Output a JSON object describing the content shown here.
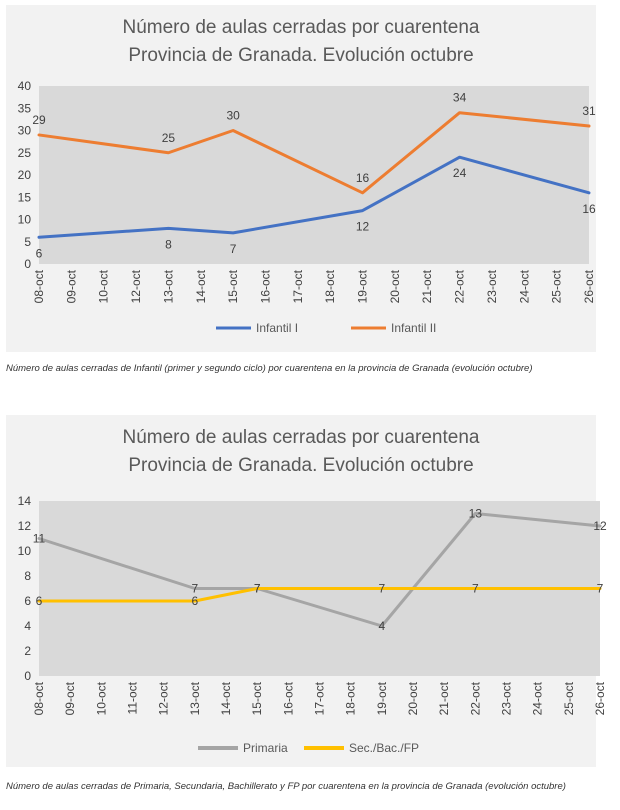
{
  "chart_data": [
    {
      "type": "line",
      "title": "Número de aulas cerradas por cuarentena",
      "subtitle": "Provincia de Granada. Evolución octubre",
      "categories": [
        "08-oct",
        "09-oct",
        "10-oct",
        "12-oct",
        "13-oct",
        "14-oct",
        "15-oct",
        "16-oct",
        "17-oct",
        "18-oct",
        "19-oct",
        "20-oct",
        "21-oct",
        "22-oct",
        "23-oct",
        "24-oct",
        "25-oct",
        "26-oct"
      ],
      "ylim": [
        0,
        40
      ],
      "yticks": [
        0,
        5,
        10,
        15,
        20,
        25,
        30,
        35,
        40
      ],
      "grid": false,
      "legend": "bottom",
      "series": [
        {
          "name": "Infantil I",
          "color": "#4472c4",
          "points": [
            {
              "x": "08-oct",
              "y": 6
            },
            {
              "x": "13-oct",
              "y": 8
            },
            {
              "x": "15-oct",
              "y": 7
            },
            {
              "x": "19-oct",
              "y": 12
            },
            {
              "x": "22-oct",
              "y": 24
            },
            {
              "x": "26-oct",
              "y": 16
            }
          ],
          "label_position": "below"
        },
        {
          "name": "Infantil II",
          "color": "#ed7d31",
          "points": [
            {
              "x": "08-oct",
              "y": 29
            },
            {
              "x": "13-oct",
              "y": 25
            },
            {
              "x": "15-oct",
              "y": 30
            },
            {
              "x": "19-oct",
              "y": 16
            },
            {
              "x": "22-oct",
              "y": 34
            },
            {
              "x": "26-oct",
              "y": 31
            }
          ],
          "label_position": "above"
        }
      ]
    },
    {
      "type": "line",
      "title": "Número de aulas cerradas por cuarentena",
      "subtitle": "Provincia de Granada. Evolución octubre",
      "categories": [
        "08-oct",
        "09-oct",
        "10-oct",
        "11-oct",
        "12-oct",
        "13-oct",
        "14-oct",
        "15-oct",
        "16-oct",
        "17-oct",
        "18-oct",
        "19-oct",
        "20-oct",
        "21-oct",
        "22-oct",
        "23-oct",
        "24-oct",
        "25-oct",
        "26-oct"
      ],
      "ylim": [
        0,
        14
      ],
      "yticks": [
        0,
        2,
        4,
        6,
        8,
        10,
        12,
        14
      ],
      "grid": false,
      "legend": "bottom",
      "series": [
        {
          "name": "Primaria",
          "color": "#a5a5a5",
          "points": [
            {
              "x": "08-oct",
              "y": 11
            },
            {
              "x": "13-oct",
              "y": 7
            },
            {
              "x": "15-oct",
              "y": 7
            },
            {
              "x": "19-oct",
              "y": 4
            },
            {
              "x": "22-oct",
              "y": 13
            },
            {
              "x": "26-oct",
              "y": 12
            }
          ],
          "label_position": "center"
        },
        {
          "name": "Sec./Bac./FP",
          "color": "#ffc000",
          "points": [
            {
              "x": "08-oct",
              "y": 6
            },
            {
              "x": "13-oct",
              "y": 6
            },
            {
              "x": "15-oct",
              "y": 7
            },
            {
              "x": "19-oct",
              "y": 7
            },
            {
              "x": "22-oct",
              "y": 7
            },
            {
              "x": "26-oct",
              "y": 7
            }
          ],
          "label_position": "center"
        }
      ]
    }
  ],
  "captions": [
    "Número de aulas cerradas de Infantil (primer y segundo ciclo) por cuarentena en la provincia de Granada (evolución octubre)",
    "Número de aulas cerradas de Primaria, Secundaria, Bachillerato y FP por cuarentena en la provincia de Granada (evolución octubre)"
  ]
}
